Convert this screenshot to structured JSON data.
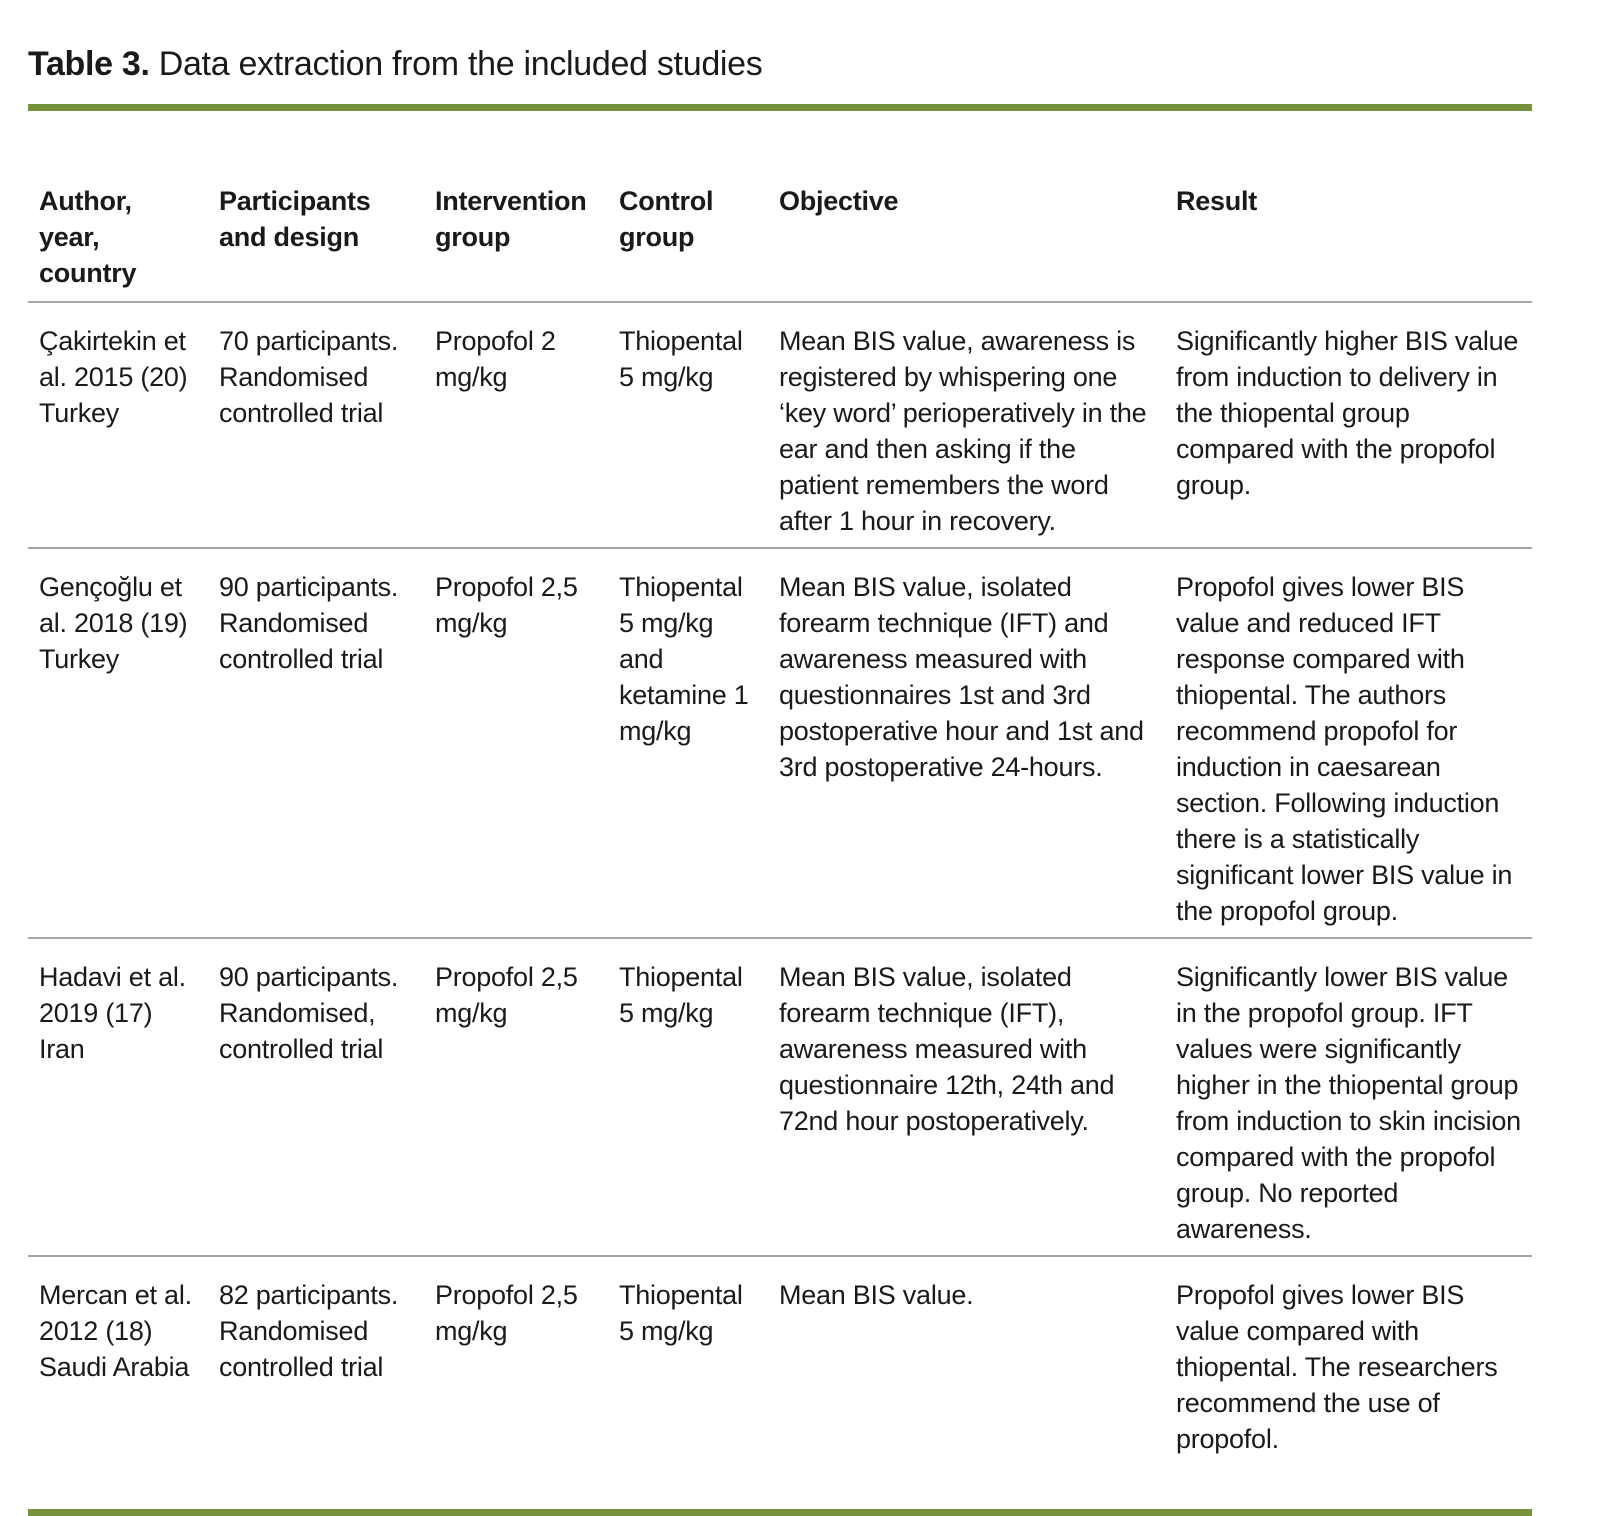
{
  "caption": {
    "label": "Table 3.",
    "text": "Data extraction from the included studies"
  },
  "colors": {
    "accent": "#76923c",
    "rule": "#a6a6a6",
    "text": "#1a1a1a"
  },
  "table": {
    "columns": [
      "Author, year, country",
      "Participants and design",
      "Intervention group",
      "Control group",
      "Objective",
      "Result"
    ],
    "rows": [
      {
        "author": "Çakirtekin et al. 2015 (20) Turkey",
        "participants": "70 participants. Randomised controlled trial",
        "intervention": "Propofol 2 mg/kg",
        "control": "Thiopental 5 mg/kg",
        "objective": "Mean BIS value, awareness is registered by whispering one ‘key word’ perioperatively in the ear and then asking if the patient remembers the word after 1 hour in recovery.",
        "result": "Significantly higher BIS value from induction to delivery in the thiopental group compared with the propofol group."
      },
      {
        "author": "Gençoğlu et al. 2018 (19) Turkey",
        "participants": "90 participants. Randomised controlled trial",
        "intervention": "Propofol 2,5 mg/kg",
        "control": "Thiopental 5 mg/kg and ketamine 1 mg/kg",
        "objective": "Mean BIS value, isolated forearm technique (IFT) and awareness measured with questionnaires 1st and 3rd postoperative hour and 1st and 3rd postoperative 24-hours.",
        "result": "Propofol gives lower BIS value and reduced IFT response compared with thiopental. The authors recommend propofol for induction in caesarean section. Following induction there is a statistically significant lower BIS value in the propofol group."
      },
      {
        "author": "Hadavi et al. 2019 (17) Iran",
        "participants": "90 participants. Randomised, controlled trial",
        "intervention": "Propofol 2,5 mg/kg",
        "control": "Thiopental 5 mg/kg",
        "objective": "Mean BIS value, isolated forearm technique (IFT), awareness measured with questionnaire 12th, 24th and 72nd hour postoperatively.",
        "result": "Significantly lower BIS value in the propofol group. IFT values were significantly higher in the thiopental group from induction to skin incision compared with the propofol group. No reported awareness."
      },
      {
        "author": "Mercan et al. 2012 (18) Saudi Arabia",
        "participants": "82 participants. Randomised controlled trial",
        "intervention": "Propofol 2,5 mg/kg",
        "control": "Thiopental 5 mg/kg",
        "objective": "Mean BIS value.",
        "result": "Propofol gives lower BIS value compared with thiopental. The researchers recommend the use of propofol."
      }
    ]
  }
}
